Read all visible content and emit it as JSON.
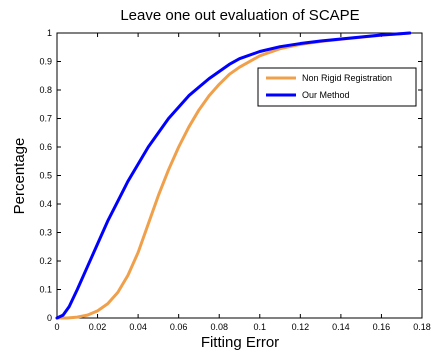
{
  "chart_data": {
    "type": "line",
    "title": "Leave one out evaluation of SCAPE",
    "xlabel": "Fitting Error",
    "ylabel": "Percentage",
    "xlim": [
      0,
      0.18
    ],
    "ylim": [
      0,
      1
    ],
    "xticks": [
      "0",
      "0.02",
      "0.04",
      "0.06",
      "0.08",
      "0.1",
      "0.12",
      "0.14",
      "0.16",
      "0.18"
    ],
    "yticks": [
      "0",
      "0.1",
      "0.2",
      "0.3",
      "0.4",
      "0.5",
      "0.6",
      "0.7",
      "0.8",
      "0.9",
      "1"
    ],
    "grid": false,
    "legend_position": "upper-right",
    "series": [
      {
        "name": "Non Rigid Registration",
        "color": "#f0a04b",
        "x": [
          0,
          0.005,
          0.01,
          0.015,
          0.02,
          0.025,
          0.03,
          0.035,
          0.04,
          0.045,
          0.05,
          0.055,
          0.06,
          0.065,
          0.07,
          0.075,
          0.08,
          0.085,
          0.09,
          0.1,
          0.11,
          0.12,
          0.13,
          0.14,
          0.15,
          0.16,
          0.17,
          0.174
        ],
        "y": [
          0,
          0.0,
          0.003,
          0.01,
          0.025,
          0.05,
          0.09,
          0.15,
          0.23,
          0.33,
          0.43,
          0.52,
          0.6,
          0.67,
          0.73,
          0.78,
          0.82,
          0.855,
          0.88,
          0.92,
          0.945,
          0.96,
          0.97,
          0.978,
          0.985,
          0.992,
          0.998,
          1.0
        ]
      },
      {
        "name": "Our Method",
        "color": "#0000ff",
        "x": [
          0,
          0.003,
          0.006,
          0.01,
          0.015,
          0.02,
          0.025,
          0.03,
          0.035,
          0.04,
          0.045,
          0.05,
          0.055,
          0.06,
          0.065,
          0.07,
          0.075,
          0.08,
          0.085,
          0.09,
          0.1,
          0.11,
          0.12,
          0.13,
          0.14,
          0.15,
          0.16,
          0.17,
          0.174
        ],
        "y": [
          0,
          0.01,
          0.04,
          0.1,
          0.18,
          0.26,
          0.34,
          0.41,
          0.48,
          0.54,
          0.6,
          0.65,
          0.7,
          0.74,
          0.78,
          0.81,
          0.84,
          0.865,
          0.89,
          0.91,
          0.935,
          0.952,
          0.963,
          0.972,
          0.979,
          0.986,
          0.993,
          0.998,
          1.0
        ]
      }
    ]
  }
}
